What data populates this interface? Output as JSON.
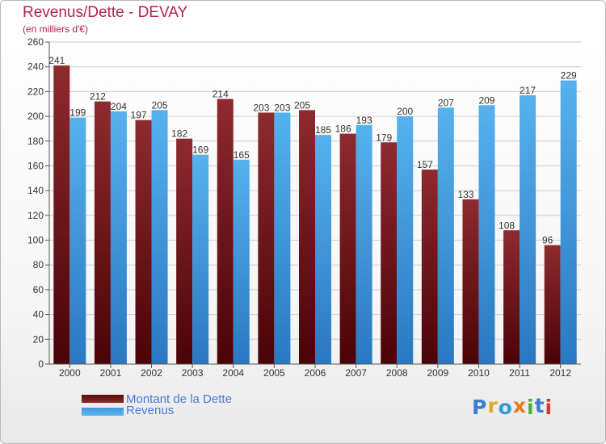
{
  "header": {
    "title": "Revenus/Dette - DEVAY",
    "subtitle": "(en milliers d'€)"
  },
  "legend": [
    {
      "label": "Montant de la Dette",
      "color": "#6e1010"
    },
    {
      "label": "Revenus",
      "color": "#4aa3e6"
    }
  ],
  "logo": {
    "text": "Proxiti",
    "colors": [
      "#3b7fd4",
      "#e8a623",
      "#2e9bd6",
      "#e8791e",
      "#4bae3b",
      "#3b7fd4",
      "#d8392b"
    ]
  },
  "chart_data": {
    "type": "bar",
    "categories": [
      "2000",
      "2001",
      "2002",
      "2003",
      "2004",
      "2005",
      "2006",
      "2007",
      "2008",
      "2009",
      "2010",
      "2011",
      "2012"
    ],
    "series": [
      {
        "name": "Montant de la Dette",
        "values": [
          241,
          212,
          197,
          182,
          214,
          203,
          205,
          186,
          179,
          157,
          133,
          108,
          96
        ],
        "color": "#7a1f25"
      },
      {
        "name": "Revenus",
        "values": [
          199,
          204,
          205,
          169,
          165,
          203,
          185,
          193,
          200,
          207,
          209,
          217,
          229
        ],
        "color": "#4aa3e6"
      }
    ],
    "title": "Revenus/Dette - DEVAY",
    "subtitle": "(en milliers d'€)",
    "xlabel": "",
    "ylabel": "",
    "ylim": [
      0,
      260
    ],
    "yticks": [
      0,
      20,
      40,
      60,
      80,
      100,
      120,
      140,
      160,
      180,
      200,
      220,
      240,
      260
    ],
    "grid": true,
    "legend_position": "bottom-left"
  }
}
